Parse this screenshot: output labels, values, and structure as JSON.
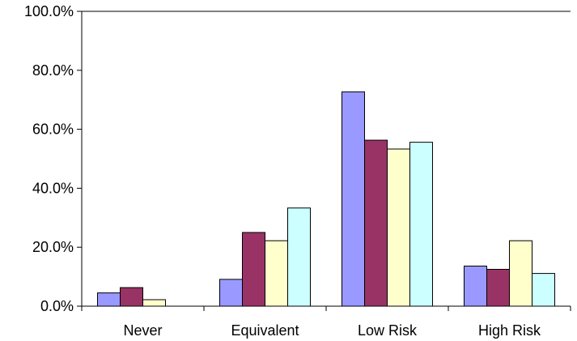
{
  "chart_data": {
    "type": "bar",
    "title": "",
    "xlabel": "",
    "ylabel": "",
    "ylim": [
      0,
      100
    ],
    "y_ticks": [
      0,
      20,
      40,
      60,
      80,
      100
    ],
    "y_tick_labels": [
      "0.0%",
      "20.0%",
      "40.0%",
      "60.0%",
      "80.0%",
      "100.0%"
    ],
    "grid": false,
    "legend": "none",
    "categories": [
      "Never",
      "Equivalent",
      "Low Risk",
      "High Risk"
    ],
    "series": [
      {
        "color": "#9999ff",
        "values": [
          4.5,
          9.1,
          72.7,
          13.6
        ]
      },
      {
        "color": "#993366",
        "values": [
          6.3,
          25.0,
          56.3,
          12.5
        ]
      },
      {
        "color": "#ffffcc",
        "values": [
          2.2,
          22.2,
          53.3,
          22.2
        ]
      },
      {
        "color": "#ccffff",
        "values": [
          0.0,
          33.3,
          55.6,
          11.1
        ]
      }
    ]
  }
}
